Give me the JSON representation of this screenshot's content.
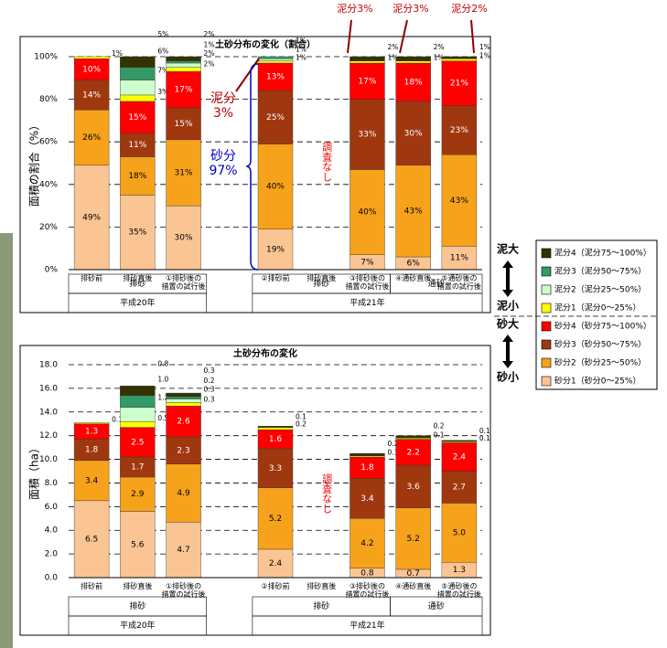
{
  "chart_data": [
    {
      "type": "bar",
      "stacked": true,
      "title": "土砂分布の変化（割合）",
      "y_label": "面積の割合（%）",
      "categories": [
        "排砂前",
        "排砂直後",
        "①排砂後の\n措置の試行後",
        null,
        "②排砂前",
        "排砂直後",
        "③排砂後の\n措置の試行後",
        "④通砂直後",
        "⑤通砂後の\n措置の試行後"
      ],
      "ylim": [
        0,
        100
      ],
      "yticks": [
        {
          "value": 0,
          "label": "0%"
        },
        {
          "value": 20,
          "label": "20%"
        },
        {
          "value": 40,
          "label": "40%"
        },
        {
          "value": 60,
          "label": "60%"
        },
        {
          "value": 80,
          "label": "80%"
        },
        {
          "value": 100,
          "label": "100%"
        }
      ],
      "grid": true,
      "series": [
        {
          "name": "砂分1（砂分0～25%）",
          "color": "#fbc593",
          "values": [
            49,
            35,
            30,
            null,
            19,
            null,
            7,
            6,
            11
          ],
          "value_labels": [
            "49%",
            "35%",
            "30%",
            null,
            "19%",
            null,
            "7%",
            "6%",
            "11%"
          ]
        },
        {
          "name": "砂分2（砂分25～50%）",
          "color": "#f7a21b",
          "values": [
            26,
            18,
            31,
            null,
            40,
            null,
            40,
            43,
            43
          ],
          "value_labels": [
            "26%",
            "18%",
            "31%",
            null,
            "40%",
            null,
            "40%",
            "43%",
            "43%"
          ]
        },
        {
          "name": "砂分3（砂分50～75%）",
          "color": "#a0380f",
          "values": [
            14,
            11,
            15,
            null,
            25,
            null,
            33,
            30,
            23
          ],
          "value_labels": [
            "14%",
            "11%",
            "15%",
            null,
            "25%",
            null,
            "33%",
            "30%",
            "23%"
          ]
        },
        {
          "name": "砂分4（砂分75～100%）",
          "color": "#ff0000",
          "values": [
            10,
            15,
            17,
            null,
            13,
            null,
            17,
            18,
            21
          ],
          "value_labels": [
            "10%",
            "15%",
            "17%",
            null,
            "13%",
            null,
            "17%",
            "18%",
            "21%"
          ]
        },
        {
          "name": "泥分1（泥分0～25%）",
          "color": "#ffff00",
          "values": [
            1,
            3,
            2,
            null,
            1,
            null,
            1,
            1,
            1
          ],
          "value_labels": [
            "1%",
            "3%",
            "2%",
            null,
            "1%",
            null,
            "1%",
            "1%",
            "1%"
          ]
        },
        {
          "name": "泥分2（泥分25～50%）",
          "color": "#ccffcc",
          "values": [
            null,
            7,
            2,
            null,
            1,
            null,
            null,
            null,
            null
          ],
          "value_labels": [
            null,
            "7%",
            "2%",
            null,
            "1%",
            null,
            null,
            null,
            null
          ]
        },
        {
          "name": "泥分3（泥分50～75%）",
          "color": "#339966",
          "values": [
            null,
            6,
            1,
            null,
            1,
            null,
            null,
            null,
            null
          ],
          "value_labels": [
            null,
            "6%",
            "1%",
            null,
            "1%",
            null,
            null,
            null,
            null
          ]
        },
        {
          "name": "泥分4（泥分75～100%）",
          "color": "#333300",
          "values": [
            null,
            5,
            2,
            null,
            null,
            null,
            2,
            2,
            1
          ],
          "value_labels": [
            null,
            "5%",
            "2%",
            null,
            null,
            null,
            "2%",
            "2%",
            "1%"
          ]
        }
      ],
      "group_rows": [
        [
          "排砂",
          "排砂",
          "排砂",
          null,
          "排砂",
          "排砂",
          "排砂",
          "通砂",
          "通砂"
        ],
        [
          "平成20年",
          "平成20年",
          "平成20年",
          null,
          "平成21年",
          "平成21年",
          "平成21年",
          "平成21年",
          "平成21年"
        ]
      ],
      "annotations": [
        {
          "text": "泥分3%"
        },
        {
          "text": "泥分3%"
        },
        {
          "text": "泥分2%"
        },
        {
          "text": "泥分\n3%"
        },
        {
          "text": "砂分\n97%"
        },
        {
          "text": "調査なし"
        }
      ]
    },
    {
      "type": "bar",
      "stacked": true,
      "title": "土砂分布の変化",
      "y_label": "面積（ha）",
      "categories": [
        "排砂前",
        "排砂直後",
        "①排砂後の\n措置の試行後",
        null,
        "②排砂前",
        "排砂直後",
        "③排砂後の\n措置の試行後",
        "④通砂直後",
        "⑤通砂後の\n措置の試行後"
      ],
      "ylim": [
        0,
        18
      ],
      "yticks": [
        {
          "value": 0,
          "label": "0.0"
        },
        {
          "value": 2,
          "label": "2.0"
        },
        {
          "value": 4,
          "label": "4.0"
        },
        {
          "value": 6,
          "label": "6.0"
        },
        {
          "value": 8,
          "label": "8.0"
        },
        {
          "value": 10,
          "label": "10.0"
        },
        {
          "value": 12,
          "label": "12.0"
        },
        {
          "value": 14,
          "label": "14.0"
        },
        {
          "value": 16,
          "label": "16.0"
        },
        {
          "value": 18,
          "label": "18.0"
        }
      ],
      "grid": true,
      "series": [
        {
          "name": "砂分1（砂分0～25%）",
          "color": "#fbc593",
          "values": [
            6.5,
            5.6,
            4.7,
            null,
            2.4,
            null,
            0.8,
            0.7,
            1.3
          ],
          "value_labels": [
            "6.5",
            "5.6",
            "4.7",
            null,
            "2.4",
            null,
            "0.8",
            "0.7",
            "1.3"
          ]
        },
        {
          "name": "砂分2（砂分25～50%）",
          "color": "#f7a21b",
          "values": [
            3.4,
            2.9,
            4.9,
            null,
            5.2,
            null,
            4.2,
            5.2,
            5.0
          ],
          "value_labels": [
            "3.4",
            "2.9",
            "4.9",
            null,
            "5.2",
            null,
            "4.2",
            "5.2",
            "5.0"
          ]
        },
        {
          "name": "砂分3（砂分50～75%）",
          "color": "#a0380f",
          "values": [
            1.8,
            1.7,
            2.3,
            null,
            3.3,
            null,
            3.4,
            3.6,
            2.7
          ],
          "value_labels": [
            "1.8",
            "1.7",
            "2.3",
            null,
            "3.3",
            null,
            "3.4",
            "3.6",
            "2.7"
          ]
        },
        {
          "name": "砂分4（砂分75～100%）",
          "color": "#ff0000",
          "values": [
            1.3,
            2.5,
            2.6,
            null,
            1.6,
            null,
            1.8,
            2.2,
            2.4
          ],
          "value_labels": [
            "1.3",
            "2.5",
            "2.6",
            null,
            "1.6",
            null,
            "1.8",
            "2.2",
            "2.4"
          ]
        },
        {
          "name": "泥分1（泥分0～25%）",
          "color": "#ffff00",
          "values": [
            0.1,
            0.5,
            0.3,
            null,
            0.2,
            null,
            0.1,
            0.1,
            0.1
          ],
          "value_labels": [
            "0.1",
            "0.5",
            "0.3",
            null,
            "0.2",
            null,
            "0.1",
            "0.1",
            "0.1"
          ]
        },
        {
          "name": "泥分2（泥分25～50%）",
          "color": "#ccffcc",
          "values": [
            null,
            1.2,
            0.3,
            null,
            null,
            null,
            null,
            null,
            null
          ],
          "value_labels": [
            null,
            "1.2",
            "0.3",
            null,
            null,
            null,
            null,
            null,
            null
          ]
        },
        {
          "name": "泥分3（泥分50～75%）",
          "color": "#339966",
          "values": [
            null,
            1.0,
            0.2,
            null,
            null,
            null,
            null,
            null,
            null
          ],
          "value_labels": [
            null,
            "1.0",
            "0.2",
            null,
            null,
            null,
            null,
            null,
            null
          ]
        },
        {
          "name": "泥分4（泥分75～100%）",
          "color": "#333300",
          "values": [
            null,
            0.8,
            0.3,
            null,
            0.1,
            null,
            0.2,
            0.2,
            0.1
          ],
          "value_labels": [
            null,
            "0.8",
            "0.3",
            null,
            "0.1",
            null,
            "0.2",
            "0.2",
            "0.1"
          ]
        }
      ],
      "group_rows": [
        [
          "排砂",
          "排砂",
          "排砂",
          null,
          "排砂",
          "排砂",
          "排砂",
          "通砂",
          "通砂"
        ],
        [
          "平成20年",
          "平成20年",
          "平成20年",
          null,
          "平成21年",
          "平成21年",
          "平成21年",
          "平成21年",
          "平成21年"
        ]
      ],
      "annotations": [
        {
          "text": "調査なし"
        }
      ]
    }
  ],
  "legend_scale": [
    "泥大",
    "泥小",
    "砂大",
    "砂小"
  ]
}
